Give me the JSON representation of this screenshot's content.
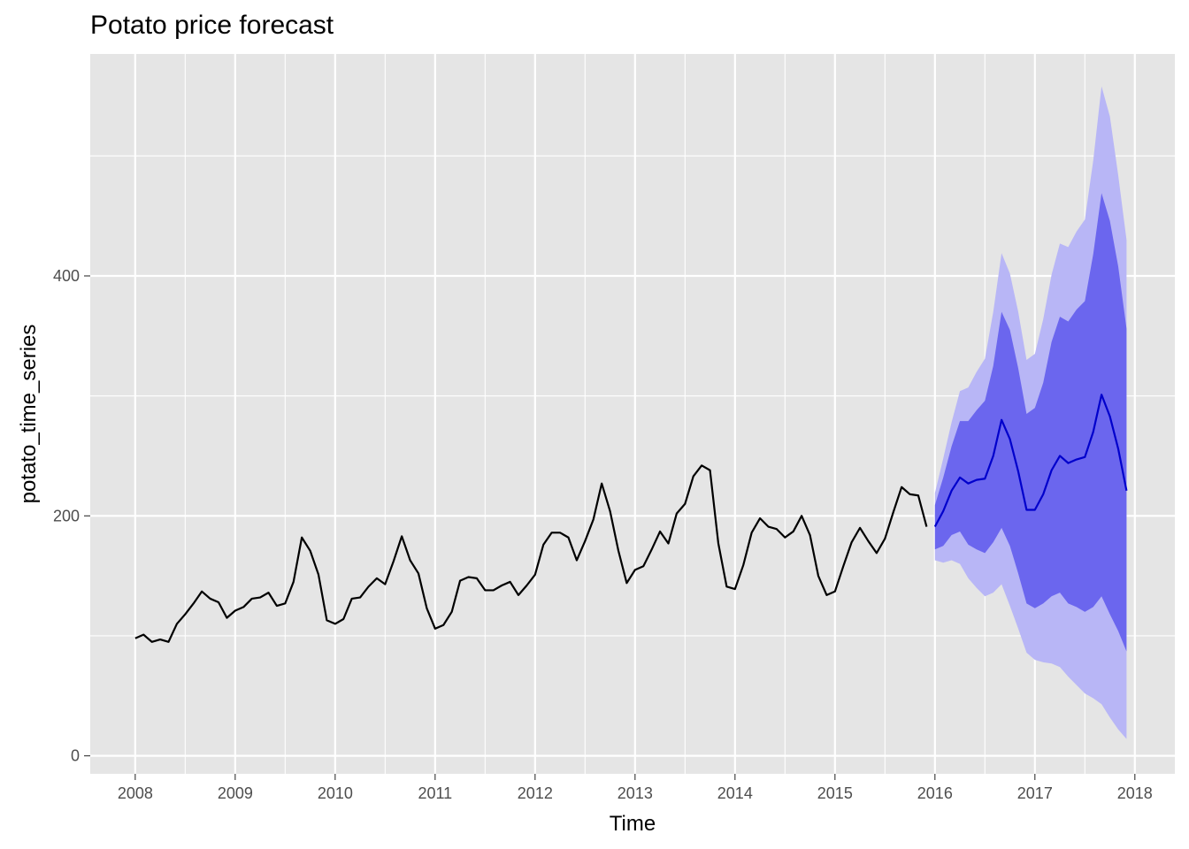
{
  "chart_data": {
    "type": "line",
    "title": "Potato price forecast",
    "xlabel": "Time",
    "ylabel": "potato_time_series",
    "xlim": [
      2007.55,
      2018.4
    ],
    "ylim": [
      -15,
      585
    ],
    "grid": true,
    "legend": "none",
    "x_ticks": [
      2008,
      2009,
      2010,
      2011,
      2012,
      2013,
      2014,
      2015,
      2016,
      2017,
      2018
    ],
    "x_tick_labels": [
      "2008",
      "2009",
      "2010",
      "2011",
      "2012",
      "2013",
      "2014",
      "2015",
      "2016",
      "2017",
      "2018"
    ],
    "y_ticks": [
      0,
      200,
      400
    ],
    "y_tick_labels": [
      "0",
      "200",
      "400"
    ],
    "colors": {
      "panel": "#e5e5e5",
      "grid": "#ffffff",
      "history": "#000000",
      "forecast": "#0000cc",
      "band80": "#6b66ee",
      "band95": "#b8b6f6"
    },
    "history": {
      "start": 2008,
      "frequency": 12,
      "values": [
        98,
        101,
        95,
        97,
        95,
        110,
        118,
        127,
        137,
        131,
        128,
        115,
        121,
        124,
        131,
        132,
        136,
        125,
        127,
        145,
        182,
        171,
        151,
        113,
        110,
        114,
        131,
        132,
        141,
        148,
        143,
        162,
        183,
        163,
        152,
        123,
        106,
        109,
        120,
        146,
        149,
        148,
        138,
        138,
        142,
        145,
        134,
        142,
        151,
        176,
        186,
        186,
        182,
        163,
        179,
        197,
        227,
        204,
        171,
        144,
        155,
        158,
        172,
        187,
        177,
        202,
        210,
        233,
        242,
        238,
        177,
        141,
        139,
        159,
        186,
        198,
        191,
        189,
        182,
        187,
        200,
        184,
        150,
        134,
        137,
        158,
        178,
        190,
        179,
        169,
        181,
        203,
        224,
        218,
        217,
        191
      ]
    },
    "forecast": {
      "start": 2016,
      "frequency": 12,
      "mean": [
        191,
        204,
        221,
        232,
        227,
        230,
        231,
        250,
        280,
        264,
        237,
        205,
        205,
        218,
        238,
        250,
        244,
        247,
        249,
        270,
        301,
        283,
        256,
        221
      ],
      "lo80": [
        172,
        175,
        184,
        187,
        176,
        172,
        169,
        178,
        190,
        175,
        152,
        127,
        123,
        127,
        133,
        136,
        127,
        124,
        120,
        124,
        133,
        118,
        104,
        87
      ],
      "hi80": [
        209,
        232,
        258,
        279,
        279,
        288,
        296,
        325,
        370,
        355,
        323,
        285,
        290,
        311,
        345,
        366,
        362,
        372,
        379,
        418,
        469,
        446,
        408,
        356
      ],
      "lo95": [
        163,
        161,
        163,
        160,
        148,
        140,
        133,
        136,
        143,
        125,
        106,
        86,
        80,
        78,
        77,
        74,
        66,
        59,
        52,
        48,
        43,
        32,
        22,
        14
      ],
      "hi95": [
        219,
        248,
        278,
        304,
        307,
        320,
        331,
        370,
        419,
        402,
        370,
        330,
        335,
        364,
        401,
        427,
        424,
        437,
        447,
        496,
        558,
        533,
        484,
        430
      ]
    }
  }
}
